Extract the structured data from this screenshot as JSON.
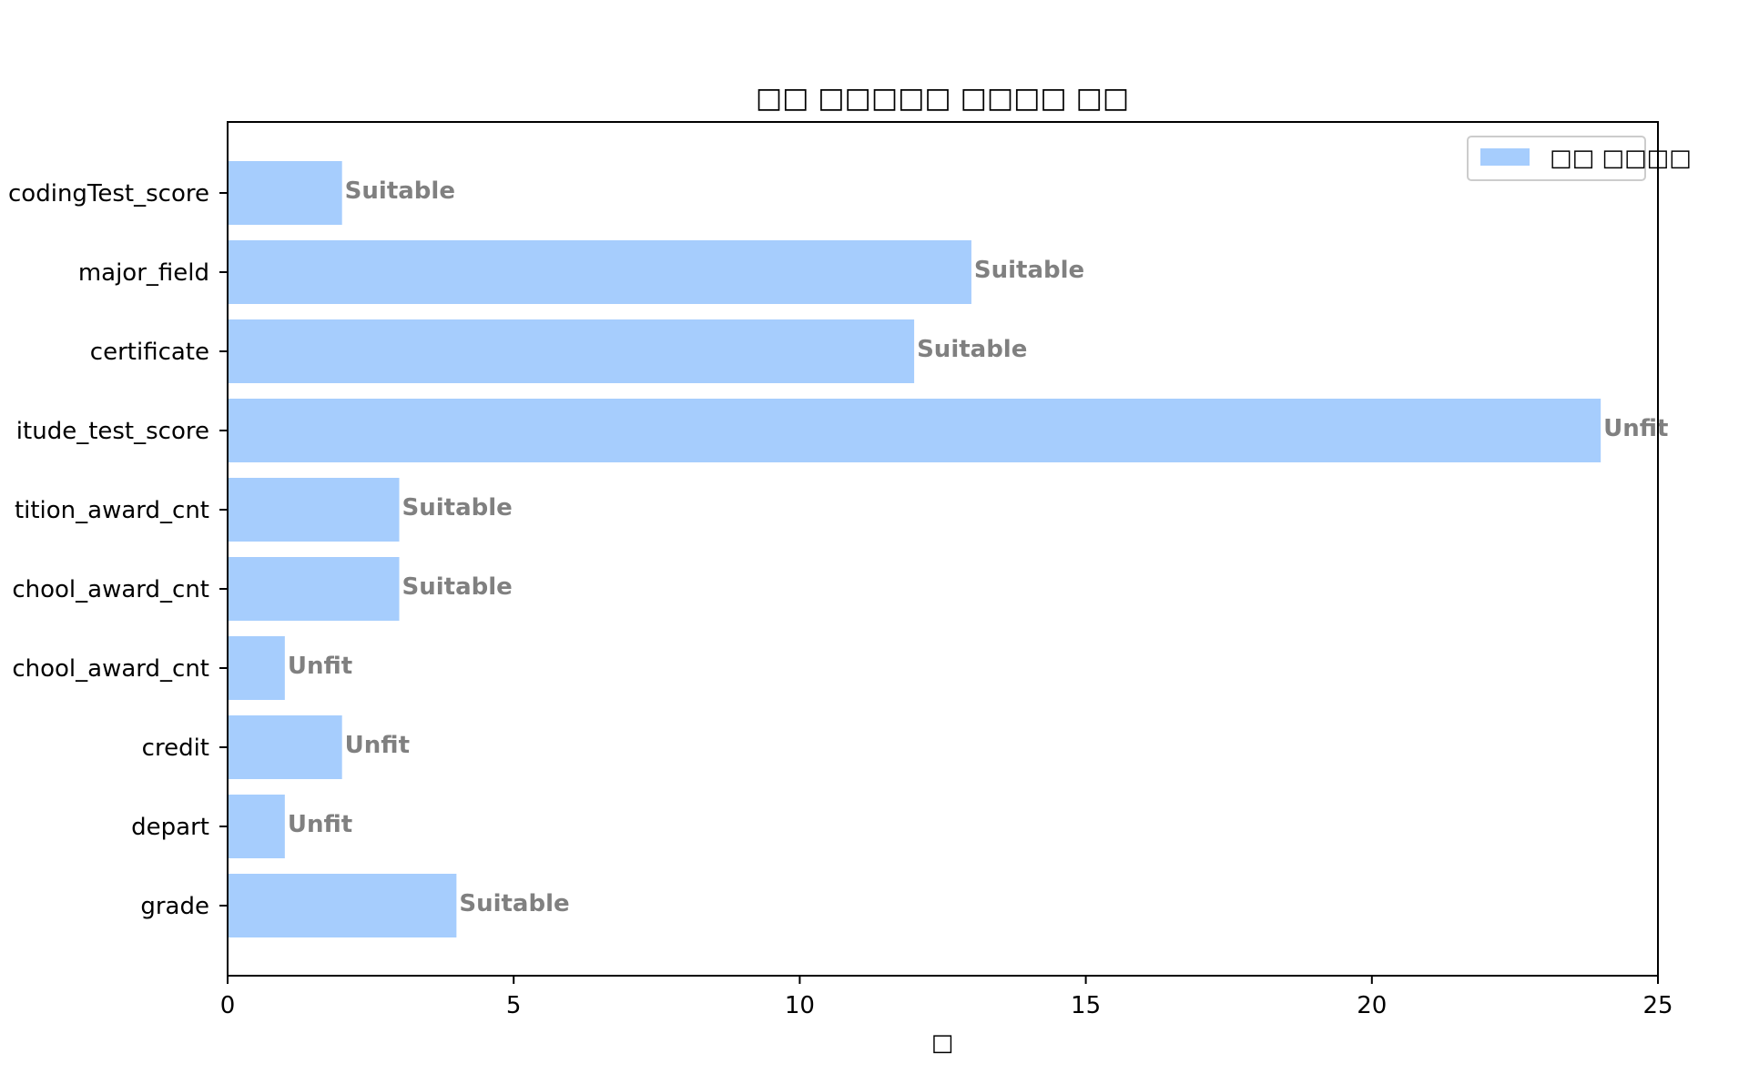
{
  "chart_data": {
    "type": "bar",
    "orientation": "horizontal",
    "title": "□□ □□□□□ □□□□ □□",
    "xlabel": "□",
    "ylabel": "",
    "xlim": [
      0,
      25
    ],
    "xticks": [
      0,
      5,
      10,
      15,
      20,
      25
    ],
    "grid": false,
    "legend_position": "top-right",
    "categories": [
      "grade",
      "depart",
      "credit",
      "chool_award_cnt",
      "chool_award_cnt",
      "tition_award_cnt",
      "itude_test_score",
      "certificate",
      "major_field",
      "codingTest_score"
    ],
    "series": [
      {
        "name": "□□ □□□□",
        "values": [
          4,
          1,
          2,
          1,
          3,
          3,
          24,
          12,
          13,
          2
        ],
        "color": "#a6cdfd"
      }
    ],
    "annotations": [
      "Suitable",
      "Unfit",
      "Unfit",
      "Unfit",
      "Suitable",
      "Suitable",
      "Unfit",
      "Suitable",
      "Suitable",
      "Suitable"
    ],
    "annotation_color": "#808080"
  }
}
